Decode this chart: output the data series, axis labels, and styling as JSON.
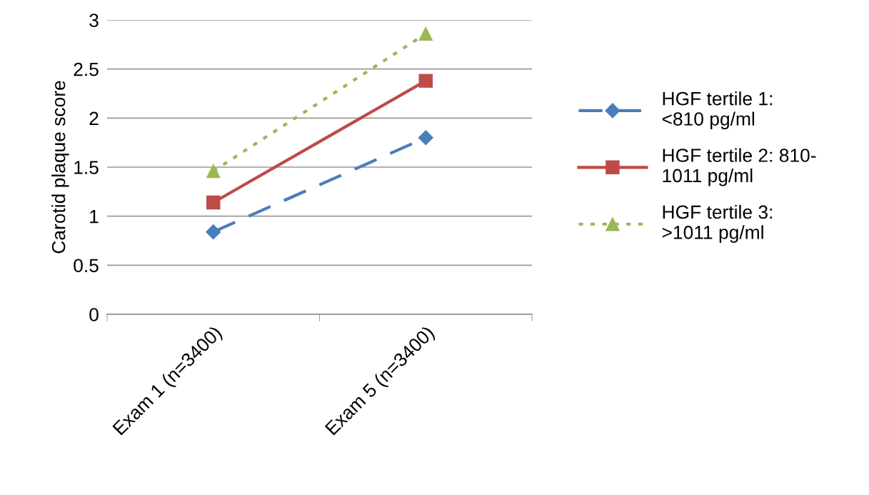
{
  "chart_data": {
    "type": "line",
    "ylabel": "Carotid plaque score",
    "categories": [
      "Exam 1 (n=3400)",
      "Exam 5 (n=3400)"
    ],
    "series": [
      {
        "name": "HGF tertile 1:\n<810 pg/ml",
        "color": "#4a7ebb",
        "values": [
          0.84,
          1.8
        ],
        "marker": "diamond",
        "line_style": "dashed"
      },
      {
        "name": "HGF tertile 2: 810-\n1011 pg/ml",
        "color": "#be4b48",
        "values": [
          1.14,
          2.38
        ],
        "marker": "square",
        "line_style": "solid"
      },
      {
        "name": "HGF tertile 3:\n>1011 pg/ml",
        "color": "#98b954",
        "values": [
          1.46,
          2.86
        ],
        "marker": "triangle",
        "line_style": "dotted"
      }
    ],
    "ylim": [
      0,
      3
    ],
    "yticks": [
      0,
      0.5,
      1,
      1.5,
      2,
      2.5,
      3
    ],
    "grid": "y",
    "legend": "right"
  }
}
